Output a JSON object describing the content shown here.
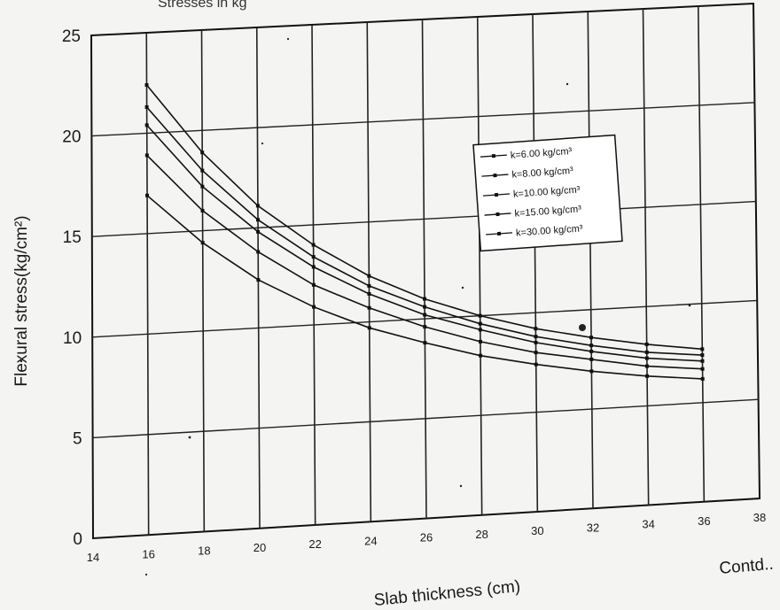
{
  "header_fragment": "Stresses in kg",
  "footer_note": "Contd..",
  "chart_data": {
    "type": "line",
    "title": "",
    "xlabel": "Slab thickness (cm)",
    "ylabel": "Flexural stress(kg/cm²)",
    "xlim": [
      14,
      38
    ],
    "ylim": [
      0,
      25
    ],
    "x_ticks": [
      "14",
      "16",
      "18",
      "20",
      "22",
      "24",
      "26",
      "28",
      "30",
      "32",
      "34",
      "36",
      "38"
    ],
    "y_ticks": [
      "0",
      "5",
      "10",
      "15",
      "20",
      "25"
    ],
    "grid": true,
    "legend_position": "top-right",
    "x": [
      16,
      18,
      20,
      22,
      24,
      26,
      28,
      30,
      32,
      34,
      36
    ],
    "series": [
      {
        "name": "k=6.00  kg/cm³",
        "values": [
          22.4,
          18.9,
          16.1,
          14.0,
          12.3,
          11.0,
          10.0,
          9.2,
          8.6,
          8.1,
          7.7
        ]
      },
      {
        "name": "k=8.00  kg/cm³",
        "values": [
          21.3,
          18.0,
          15.4,
          13.4,
          11.8,
          10.6,
          9.6,
          8.8,
          8.2,
          7.7,
          7.4
        ]
      },
      {
        "name": "k=10.00 kg/cm³",
        "values": [
          20.4,
          17.2,
          14.8,
          12.9,
          11.4,
          10.2,
          9.3,
          8.5,
          7.9,
          7.4,
          7.1
        ]
      },
      {
        "name": "k=15.00 kg/cm³",
        "values": [
          18.9,
          16.0,
          13.8,
          12.0,
          10.7,
          9.6,
          8.7,
          8.0,
          7.5,
          7.0,
          6.7
        ]
      },
      {
        "name": "k=30.00 kg/cm³",
        "values": [
          16.9,
          14.4,
          12.4,
          10.9,
          9.7,
          8.8,
          8.0,
          7.4,
          6.9,
          6.5,
          6.2
        ]
      }
    ]
  }
}
